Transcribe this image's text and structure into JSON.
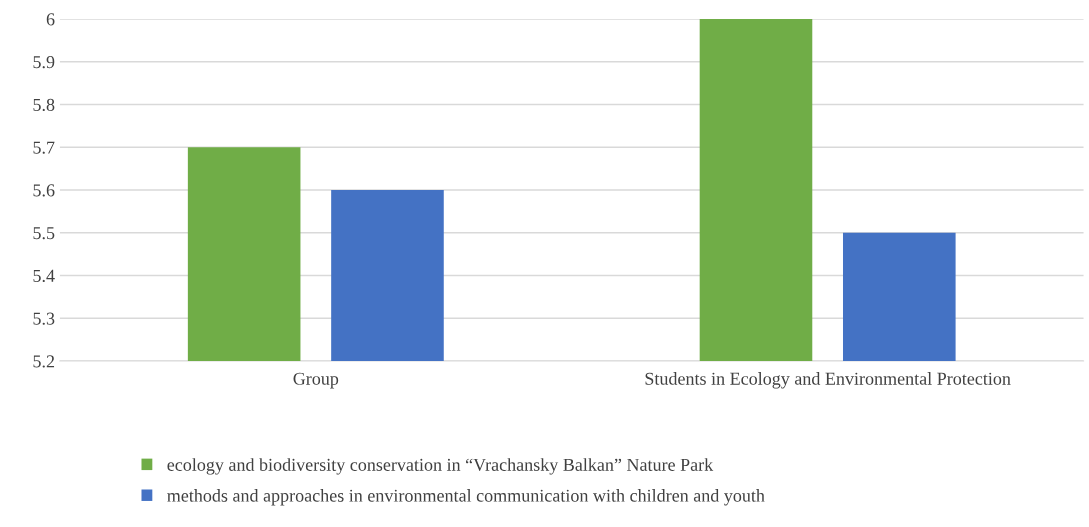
{
  "chart_data": {
    "type": "bar",
    "categories": [
      "Group",
      "Students in Ecology and Environmental Protection"
    ],
    "series": [
      {
        "name": "ecology and biodiversity conservation in “Vrachansky Balkan” Nature Park",
        "color": "#70ad47",
        "values": [
          5.7,
          6.0
        ]
      },
      {
        "name": "methods and approaches in environmental communication with children and youth",
        "color": "#4472c4",
        "values": [
          5.6,
          5.5
        ]
      }
    ],
    "ylim": [
      5.2,
      6.0
    ],
    "yticks": [
      5.2,
      5.3,
      5.4,
      5.5,
      5.6,
      5.7,
      5.8,
      5.9,
      {
        "value": 6.0,
        "label": "6"
      }
    ],
    "grid": "y",
    "legend": "bottom"
  }
}
